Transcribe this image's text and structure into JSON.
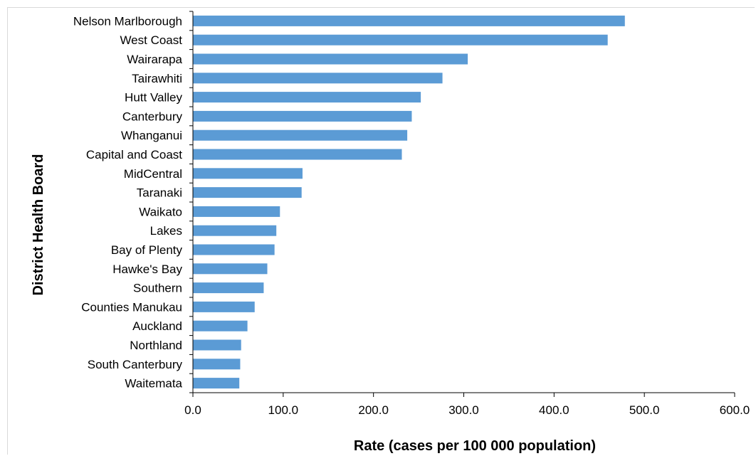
{
  "chart_data": {
    "type": "bar",
    "orientation": "horizontal",
    "title": "",
    "xlabel": "Rate (cases per 100 000 population)",
    "ylabel": "District Health Board",
    "xlim": [
      0,
      600
    ],
    "xticks": [
      "0.0",
      "100.0",
      "200.0",
      "300.0",
      "400.0",
      "500.0",
      "600.0"
    ],
    "xtick_values": [
      0,
      100,
      200,
      300,
      400,
      500,
      600
    ],
    "grid": false,
    "legend": "none",
    "bar_color": "#5b9bd5",
    "categories": [
      "Nelson Marlborough",
      "West Coast",
      "Wairarapa",
      "Tairawhiti",
      "Hutt Valley",
      "Canterbury",
      "Whanganui",
      "Capital and Coast",
      "MidCentral",
      "Taranaki",
      "Waikato",
      "Lakes",
      "Bay of Plenty",
      "Hawke's Bay",
      "Southern",
      "Counties Manukau",
      "Auckland",
      "Northland",
      "South Canterbury",
      "Waitemata"
    ],
    "values": [
      478,
      459,
      304,
      276,
      252,
      242,
      237,
      231,
      121,
      120,
      96,
      92,
      90,
      82,
      78,
      68,
      60,
      53,
      52,
      51
    ]
  }
}
